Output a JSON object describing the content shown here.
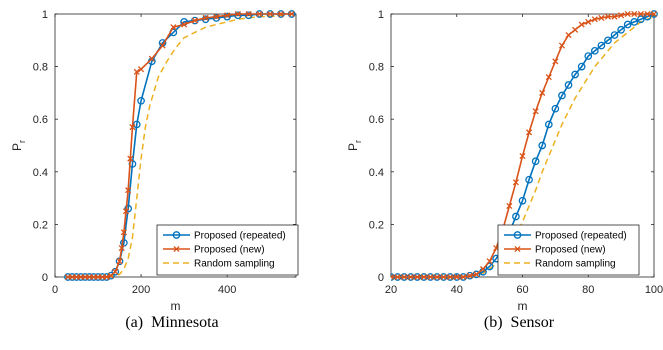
{
  "chart_data": [
    {
      "type": "line",
      "caption": "(a)  Minnesota",
      "xlabel": "m",
      "ylabel": "P",
      "ylabel_sub": "r",
      "xlim": [
        0,
        560
      ],
      "ylim": [
        0,
        1
      ],
      "xticks": [
        0,
        200,
        400
      ],
      "yticks": [
        0,
        0.2,
        0.4,
        0.6,
        0.8,
        1
      ],
      "ytick_labels": [
        "0",
        "0.2",
        "0.4",
        "0.6",
        "0.8",
        "1"
      ],
      "legend_position": "bottom-right",
      "series": [
        {
          "name": "Proposed (repeated)",
          "color": "#0072BD",
          "style": "solid-circles",
          "x": [
            30,
            40,
            50,
            60,
            70,
            80,
            90,
            100,
            110,
            120,
            130,
            140,
            150,
            160,
            170,
            180,
            190,
            200,
            225,
            250,
            275,
            300,
            325,
            350,
            375,
            400,
            425,
            450,
            475,
            500,
            525,
            550
          ],
          "y": [
            0,
            0,
            0,
            0,
            0,
            0,
            0,
            0,
            0,
            0,
            0.005,
            0.02,
            0.06,
            0.13,
            0.26,
            0.43,
            0.58,
            0.67,
            0.82,
            0.89,
            0.93,
            0.97,
            0.975,
            0.98,
            0.985,
            0.99,
            0.995,
            0.995,
            1,
            1,
            1,
            1
          ]
        },
        {
          "name": "Proposed (new)",
          "color": "#D95319",
          "style": "solid-x",
          "x": [
            30,
            40,
            50,
            60,
            70,
            80,
            90,
            100,
            110,
            120,
            130,
            140,
            150,
            155,
            160,
            165,
            170,
            175,
            180,
            190,
            200,
            225,
            250,
            275,
            300,
            325,
            350,
            375,
            400,
            425,
            450,
            475,
            500,
            525,
            550
          ],
          "y": [
            0,
            0,
            0,
            0,
            0,
            0,
            0,
            0,
            0,
            0,
            0.005,
            0.02,
            0.06,
            0.11,
            0.17,
            0.25,
            0.33,
            0.45,
            0.57,
            0.78,
            0.79,
            0.83,
            0.88,
            0.95,
            0.96,
            0.975,
            0.985,
            0.99,
            0.995,
            1,
            1,
            1,
            1,
            1,
            1
          ]
        },
        {
          "name": "Random sampling",
          "color": "#EDB120",
          "style": "dashed",
          "x": [
            30,
            60,
            90,
            120,
            140,
            150,
            160,
            170,
            180,
            190,
            200,
            210,
            220,
            240,
            260,
            280,
            300,
            325,
            350,
            375,
            400,
            425,
            450,
            475,
            500,
            525,
            550
          ],
          "y": [
            0,
            0,
            0,
            0,
            0.005,
            0.01,
            0.03,
            0.07,
            0.15,
            0.3,
            0.45,
            0.57,
            0.65,
            0.76,
            0.82,
            0.87,
            0.91,
            0.93,
            0.95,
            0.96,
            0.97,
            0.98,
            0.985,
            0.99,
            0.99,
            0.995,
            1
          ]
        }
      ]
    },
    {
      "type": "line",
      "caption": "(b)  Sensor",
      "xlabel": "m",
      "ylabel": "P",
      "ylabel_sub": "r",
      "xlim": [
        20,
        100
      ],
      "ylim": [
        0,
        1
      ],
      "xticks": [
        20,
        40,
        60,
        80,
        100
      ],
      "yticks": [
        0,
        0.2,
        0.4,
        0.6,
        0.8,
        1
      ],
      "ytick_labels": [
        "0",
        "0.2",
        "0.4",
        "0.6",
        "0.8",
        "1"
      ],
      "legend_position": "bottom-right",
      "series": [
        {
          "name": "Proposed (repeated)",
          "color": "#0072BD",
          "style": "solid-circles",
          "x": [
            20,
            22,
            24,
            26,
            28,
            30,
            32,
            34,
            36,
            38,
            40,
            42,
            44,
            46,
            48,
            50,
            52,
            54,
            56,
            58,
            60,
            62,
            64,
            66,
            68,
            70,
            72,
            74,
            76,
            78,
            80,
            82,
            84,
            86,
            88,
            90,
            92,
            94,
            96,
            98,
            100
          ],
          "y": [
            0,
            0,
            0,
            0,
            0,
            0,
            0,
            0,
            0,
            0,
            0,
            0,
            0.005,
            0.01,
            0.02,
            0.04,
            0.07,
            0.11,
            0.17,
            0.23,
            0.29,
            0.37,
            0.44,
            0.5,
            0.58,
            0.64,
            0.69,
            0.73,
            0.77,
            0.8,
            0.84,
            0.86,
            0.88,
            0.9,
            0.92,
            0.94,
            0.96,
            0.97,
            0.98,
            0.99,
            1
          ]
        },
        {
          "name": "Proposed (new)",
          "color": "#D95319",
          "style": "solid-x",
          "x": [
            20,
            22,
            24,
            26,
            28,
            30,
            32,
            34,
            36,
            38,
            40,
            42,
            44,
            46,
            48,
            50,
            52,
            54,
            56,
            58,
            60,
            62,
            64,
            66,
            68,
            70,
            72,
            74,
            76,
            78,
            80,
            82,
            84,
            86,
            88,
            90,
            92,
            94,
            96,
            98,
            100
          ],
          "y": [
            0,
            0,
            0,
            0,
            0,
            0,
            0,
            0,
            0,
            0,
            0,
            0,
            0.005,
            0.01,
            0.03,
            0.06,
            0.11,
            0.18,
            0.27,
            0.36,
            0.46,
            0.55,
            0.63,
            0.7,
            0.76,
            0.82,
            0.88,
            0.92,
            0.94,
            0.96,
            0.97,
            0.98,
            0.985,
            0.99,
            0.99,
            0.995,
            1,
            1,
            1,
            1,
            1
          ]
        },
        {
          "name": "Random sampling",
          "color": "#EDB120",
          "style": "dashed",
          "x": [
            20,
            30,
            40,
            44,
            48,
            50,
            52,
            54,
            56,
            58,
            60,
            62,
            64,
            66,
            68,
            70,
            72,
            74,
            76,
            78,
            80,
            82,
            84,
            86,
            88,
            90,
            92,
            94,
            96,
            98,
            100
          ],
          "y": [
            0,
            0,
            0,
            0.005,
            0.015,
            0.03,
            0.05,
            0.08,
            0.12,
            0.16,
            0.21,
            0.27,
            0.33,
            0.4,
            0.46,
            0.52,
            0.58,
            0.63,
            0.68,
            0.72,
            0.76,
            0.8,
            0.83,
            0.86,
            0.89,
            0.91,
            0.93,
            0.95,
            0.97,
            0.98,
            0.99
          ]
        }
      ]
    }
  ]
}
